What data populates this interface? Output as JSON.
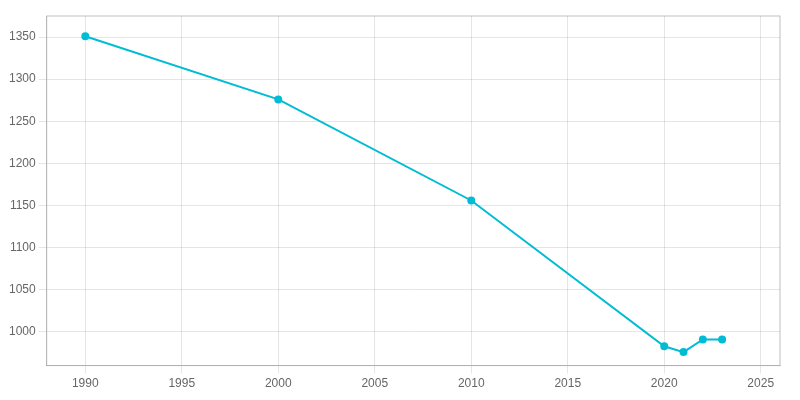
{
  "chart_data": {
    "type": "line",
    "x": [
      1990,
      2000,
      2010,
      2020,
      2021,
      2022,
      2023
    ],
    "values": [
      1351,
      1276,
      1156,
      983,
      976,
      991,
      991
    ],
    "color": "#00bcd4",
    "marker": "circle",
    "xlim": [
      1988,
      2026
    ],
    "ylim": [
      960,
      1375
    ],
    "xticks": [
      1990,
      1995,
      2000,
      2005,
      2010,
      2015,
      2020,
      2025
    ],
    "yticks": [
      1000,
      1050,
      1100,
      1150,
      1200,
      1250,
      1300,
      1350
    ],
    "grid": true
  }
}
